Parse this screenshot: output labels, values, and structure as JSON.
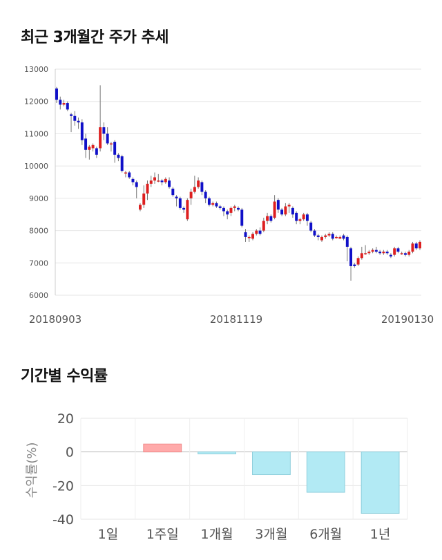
{
  "sections": {
    "candle_title": "최근 3개월간 주가 추세",
    "returns_title": "기간별 수익률"
  },
  "chart_data": [
    {
      "type": "candlestick",
      "title": "최근 3개월간 주가 추세",
      "ylim": [
        6000,
        13000
      ],
      "yticks": [
        6000,
        7000,
        8000,
        9000,
        10000,
        11000,
        12000,
        13000
      ],
      "x_tick_labels": [
        "20180903",
        "20181119",
        "20190130"
      ],
      "grid": true,
      "colors": {
        "up": "#dd1f1f",
        "down": "#1010c8",
        "wick": "#777777"
      },
      "candles": [
        [
          12400,
          12050,
          12450,
          11950
        ],
        [
          12050,
          11900,
          12150,
          11750
        ],
        [
          11900,
          11950,
          12050,
          11850
        ],
        [
          11950,
          11750,
          12000,
          11700
        ],
        [
          11600,
          11550,
          11650,
          11050
        ],
        [
          11550,
          11400,
          11700,
          11250
        ],
        [
          11400,
          11350,
          11500,
          11150
        ],
        [
          11350,
          10800,
          11450,
          10650
        ],
        [
          10850,
          10500,
          11000,
          10250
        ],
        [
          10500,
          10600,
          10650,
          10200
        ],
        [
          10550,
          10650,
          10700,
          10450
        ],
        [
          10550,
          10350,
          10600,
          10250
        ],
        [
          10550,
          11200,
          12500,
          10450
        ],
        [
          11200,
          11000,
          11350,
          10800
        ],
        [
          11000,
          10700,
          11200,
          10650
        ],
        [
          10700,
          10700,
          10750,
          10450
        ],
        [
          10750,
          10350,
          10800,
          10100
        ],
        [
          10350,
          10250,
          10400,
          10150
        ],
        [
          10300,
          9850,
          10350,
          9800
        ],
        [
          9800,
          9800,
          9850,
          9650
        ],
        [
          9800,
          9650,
          9850,
          9600
        ],
        [
          9600,
          9500,
          9650,
          9400
        ],
        [
          9500,
          9350,
          9550,
          9000
        ],
        [
          8650,
          8800,
          8850,
          8600
        ],
        [
          8800,
          9150,
          9400,
          8700
        ],
        [
          9150,
          9450,
          9550,
          8950
        ],
        [
          9450,
          9550,
          9700,
          9350
        ],
        [
          9550,
          9650,
          9800,
          9450
        ],
        [
          9550,
          9550,
          9750,
          9500
        ],
        [
          9550,
          9500,
          9600,
          9400
        ],
        [
          9500,
          9600,
          9650,
          9450
        ],
        [
          9550,
          9350,
          9650,
          9300
        ],
        [
          9300,
          9100,
          9350,
          9050
        ],
        [
          9050,
          9000,
          9100,
          8750
        ],
        [
          9000,
          8700,
          9050,
          8650
        ],
        [
          8700,
          8650,
          8750,
          8550
        ],
        [
          8350,
          8950,
          9000,
          8300
        ],
        [
          9000,
          9200,
          9300,
          8800
        ],
        [
          9200,
          9350,
          9700,
          9150
        ],
        [
          9350,
          9550,
          9650,
          9300
        ],
        [
          9500,
          9200,
          9550,
          9100
        ],
        [
          9200,
          9000,
          9250,
          8850
        ],
        [
          9000,
          8800,
          9050,
          8750
        ],
        [
          8800,
          8850,
          8900,
          8750
        ],
        [
          8850,
          8750,
          8900,
          8700
        ],
        [
          8750,
          8700,
          8800,
          8650
        ],
        [
          8700,
          8600,
          8750,
          8450
        ],
        [
          8600,
          8500,
          8650,
          8350
        ],
        [
          8550,
          8700,
          8750,
          8450
        ],
        [
          8700,
          8750,
          8800,
          8600
        ],
        [
          8700,
          8650,
          8750,
          8600
        ],
        [
          8650,
          8150,
          8700,
          8100
        ],
        [
          7950,
          7800,
          8050,
          7650
        ],
        [
          7800,
          7800,
          7850,
          7650
        ],
        [
          7750,
          7900,
          7950,
          7700
        ],
        [
          7900,
          8000,
          8050,
          7850
        ],
        [
          8000,
          7900,
          8100,
          7850
        ],
        [
          8000,
          8300,
          8400,
          7950
        ],
        [
          8300,
          8450,
          8550,
          8200
        ],
        [
          8450,
          8300,
          8500,
          8250
        ],
        [
          8400,
          8900,
          9100,
          8350
        ],
        [
          8950,
          8650,
          9000,
          8550
        ],
        [
          8650,
          8500,
          8700,
          8450
        ],
        [
          8500,
          8750,
          8850,
          8450
        ],
        [
          8750,
          8800,
          8850,
          8550
        ],
        [
          8700,
          8500,
          8750,
          8400
        ],
        [
          8550,
          8300,
          8600,
          8200
        ],
        [
          8300,
          8350,
          8400,
          8200
        ],
        [
          8350,
          8500,
          8550,
          8300
        ],
        [
          8500,
          8300,
          8550,
          8150
        ],
        [
          8250,
          8000,
          8300,
          7950
        ],
        [
          8000,
          7850,
          8050,
          7800
        ],
        [
          7850,
          7800,
          7900,
          7700
        ],
        [
          7700,
          7800,
          7850,
          7650
        ],
        [
          7800,
          7850,
          7900,
          7750
        ],
        [
          7850,
          7900,
          7950,
          7800
        ],
        [
          7900,
          7750,
          7950,
          7700
        ],
        [
          7800,
          7800,
          7850,
          7750
        ],
        [
          7750,
          7800,
          7850,
          7750
        ],
        [
          7850,
          7750,
          7900,
          7700
        ],
        [
          7800,
          7500,
          7850,
          7050
        ],
        [
          7450,
          6900,
          7500,
          6450
        ],
        [
          6950,
          6900,
          7000,
          6850
        ],
        [
          6950,
          7150,
          7200,
          6900
        ],
        [
          7150,
          7300,
          7500,
          7100
        ],
        [
          7300,
          7300,
          7550,
          7250
        ],
        [
          7300,
          7350,
          7400,
          7250
        ],
        [
          7350,
          7400,
          7450,
          7300
        ],
        [
          7400,
          7350,
          7500,
          7300
        ],
        [
          7350,
          7300,
          7400,
          7250
        ],
        [
          7300,
          7350,
          7400,
          7250
        ],
        [
          7350,
          7300,
          7400,
          7250
        ],
        [
          7250,
          7200,
          7300,
          7150
        ],
        [
          7250,
          7450,
          7500,
          7200
        ],
        [
          7450,
          7350,
          7500,
          7300
        ],
        [
          7300,
          7300,
          7350,
          7250
        ],
        [
          7300,
          7250,
          7350,
          7200
        ],
        [
          7250,
          7350,
          7400,
          7200
        ],
        [
          7350,
          7600,
          7650,
          7300
        ],
        [
          7600,
          7450,
          7650,
          7400
        ],
        [
          7450,
          7650,
          7700,
          7400
        ]
      ]
    },
    {
      "type": "bar",
      "title": "기간별 수익률",
      "ylabel": "수익률(%)",
      "categories": [
        "1일",
        "1주일",
        "1개월",
        "3개월",
        "6개월",
        "1년"
      ],
      "values": [
        0,
        4.7,
        -1.2,
        -13.5,
        -24.0,
        -36.5
      ],
      "ylim": [
        -40,
        20
      ],
      "yticks": [
        20,
        0,
        -20,
        -40
      ],
      "grid": true,
      "colors": {
        "positive": "#ffaaaa",
        "negative": "#b2eaf4"
      }
    }
  ]
}
